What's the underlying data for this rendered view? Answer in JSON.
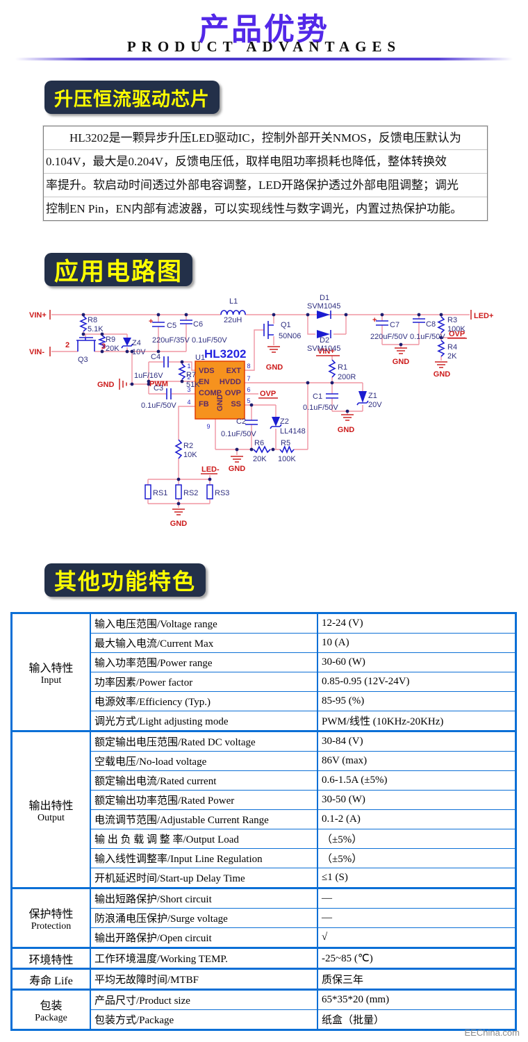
{
  "header": {
    "title": "产品优势",
    "subtitle": "PRODUCT  ADVANTAGES"
  },
  "badges": {
    "chip": "升压恒流驱动芯片",
    "circuit": "应用电路图",
    "features": "其他功能特色"
  },
  "intro": {
    "lines": [
      "　　HL3202是一颗异步升压LED驱动IC，控制外部开关NMOS，反馈电压默认为",
      "0.104V，最大是0.204V，反馈电压低，取样电阻功率损耗也降低，整体转换效",
      "率提升。软启动时间透过外部电容调整，LED开路保护透过外部电阻调整；调光",
      "控制EN Pin，EN内部有滤波器，可以实现线性与数字调光，内置过热保护功能。"
    ]
  },
  "circuit": {
    "ic": {
      "ref": "U1",
      "name": "HL3202",
      "left_pins": [
        [
          "1",
          "VDS"
        ],
        [
          "2",
          "EN"
        ],
        [
          "3",
          "COMP"
        ],
        [
          "4",
          "FB"
        ]
      ],
      "right_pins": [
        [
          "8",
          "EXT"
        ],
        [
          "7",
          "HVDD"
        ],
        [
          "6",
          "OVP"
        ],
        [
          "5",
          "SS"
        ]
      ],
      "bottom_pin": [
        "9",
        "GND"
      ]
    },
    "labels": {
      "net": [
        [
          "VIN+",
          42,
          457
        ],
        [
          "VIN-",
          42,
          510
        ],
        [
          "GND",
          140,
          557
        ],
        [
          "PWM",
          215,
          556
        ],
        [
          "OVP",
          374,
          570
        ],
        [
          "GND",
          395,
          532,
          "m"
        ],
        [
          "VIN+",
          457,
          509
        ],
        [
          "GND",
          577,
          524,
          "m"
        ],
        [
          "OVP",
          646,
          484
        ],
        [
          "GND",
          636,
          542,
          "m"
        ],
        [
          "GND",
          498,
          622,
          "m"
        ],
        [
          "GND",
          341,
          678,
          "m"
        ],
        [
          "GND",
          257,
          757,
          "m"
        ],
        [
          "LED+",
          682,
          458
        ],
        [
          "LED-",
          290,
          679
        ],
        [
          "2",
          94,
          500
        ],
        [
          "3",
          146,
          502
        ],
        [
          "+",
          214,
          466
        ],
        [
          "+",
          536,
          464
        ]
      ],
      "comp": [
        [
          "R8",
          126,
          464
        ],
        [
          "5.1K",
          126,
          477
        ],
        [
          "R9",
          152,
          492
        ],
        [
          "20K",
          152,
          505
        ],
        [
          "Z4",
          190,
          497
        ],
        [
          "10V",
          190,
          510
        ],
        [
          "Q3",
          112,
          521
        ],
        [
          "C5",
          240,
          472
        ],
        [
          "220uF/35V",
          219,
          493
        ],
        [
          "C6",
          278,
          470
        ],
        [
          "0.1uF/50V",
          276,
          493
        ],
        [
          "L1",
          330,
          437
        ],
        [
          "22uH",
          322,
          464
        ],
        [
          "C4",
          217,
          517
        ],
        [
          "1uF/16V",
          193,
          544
        ],
        [
          "R7",
          268,
          543
        ],
        [
          "51K",
          268,
          557
        ],
        [
          "C3",
          221,
          562
        ],
        [
          "0.1uF/50V",
          203,
          587
        ],
        [
          "Q1",
          404,
          471
        ],
        [
          "50N06",
          401,
          487
        ],
        [
          "D1",
          460,
          432
        ],
        [
          "SVM1045",
          442,
          444
        ],
        [
          "D2",
          460,
          493
        ],
        [
          "SVM1045",
          442,
          505
        ],
        [
          "C7",
          561,
          471
        ],
        [
          "220uF/50V",
          533,
          488
        ],
        [
          "C8",
          613,
          470
        ],
        [
          "0.1uF/50V",
          590,
          488
        ],
        [
          "R3",
          644,
          464
        ],
        [
          "100K",
          644,
          477
        ],
        [
          "R4",
          644,
          503
        ],
        [
          "2K",
          644,
          516
        ],
        [
          "R1",
          486,
          532
        ],
        [
          "200R",
          486,
          546
        ],
        [
          "C1",
          450,
          574
        ],
        [
          "0.1uF/50V",
          436,
          590
        ],
        [
          "Z1",
          530,
          573
        ],
        [
          "20V",
          530,
          586
        ],
        [
          "Z2",
          403,
          610
        ],
        [
          "LL4148",
          403,
          624
        ],
        [
          "C2",
          340,
          610
        ],
        [
          "0.1uF/50V",
          318,
          628
        ],
        [
          "R6",
          366,
          641
        ],
        [
          "20K",
          364,
          664
        ],
        [
          "R5",
          404,
          641
        ],
        [
          "100K",
          400,
          664
        ],
        [
          "R2",
          264,
          645
        ],
        [
          "10K",
          264,
          658
        ],
        [
          "RS1",
          220,
          713
        ],
        [
          "RS2",
          264,
          713
        ],
        [
          "RS3",
          309,
          713
        ],
        [
          "U1",
          281,
          518
        ]
      ],
      "pinnums": [
        [
          "1",
          272,
          530
        ],
        [
          "2",
          272,
          546
        ],
        [
          "3",
          272,
          564
        ],
        [
          "4",
          272,
          582
        ],
        [
          "8",
          358,
          530
        ],
        [
          "7",
          358,
          548
        ],
        [
          "6",
          358,
          564
        ],
        [
          "5",
          358,
          580
        ],
        [
          "9",
          300,
          617
        ]
      ]
    }
  },
  "table": {
    "sections": [
      {
        "category": [
          "输入特性",
          "Input"
        ],
        "rows": [
          [
            "输入电压范围/Voltage range",
            "12-24 (V)"
          ],
          [
            "最大输入电流/Current Max",
            "10 (A)"
          ],
          [
            "输入功率范围/Power range",
            "30-60 (W)"
          ],
          [
            "功率因素/Power factor",
            "0.85-0.95 (12V-24V)"
          ],
          [
            "电源效率/Efficiency (Typ.)",
            "85-95 (%)"
          ],
          [
            "调光方式/Light adjusting mode",
            "PWM/线性 (10KHz-20KHz)"
          ]
        ]
      },
      {
        "category": [
          "输出特性",
          "Output"
        ],
        "rows": [
          [
            "额定输出电压范围/Rated DC voltage",
            "30-84 (V)"
          ],
          [
            "空载电压/No-load voltage",
            "86V (max)"
          ],
          [
            "额定输出电流/Rated current",
            "0.6-1.5A (±5%)"
          ],
          [
            "额定输出功率范围/Rated Power",
            "30-50 (W)"
          ],
          [
            "电流调节范围/Adjustable Current Range",
            "0.1-2 (A)"
          ],
          [
            "输 出 负 载 调 整 率/Output Load",
            "（±5%）"
          ],
          [
            "输入线性调整率/Input Line Regulation",
            "（±5%）"
          ],
          [
            "开机延迟时间/Start-up Delay Time",
            "≤1 (S)"
          ]
        ]
      },
      {
        "category": [
          "保护特性",
          "Protection"
        ],
        "rows": [
          [
            "输出短路保护/Short circuit",
            "—"
          ],
          [
            "防浪涌电压保护/Surge voltage",
            "—"
          ],
          [
            "输出开路保护/Open circuit",
            "√"
          ]
        ]
      },
      {
        "category": [
          "环境特性"
        ],
        "rows": [
          [
            "工作环境温度/Working TEMP.",
            "-25~85 (℃)"
          ]
        ]
      },
      {
        "category": [
          "寿命 Life"
        ],
        "rows": [
          [
            "平均无故障时间/MTBF",
            "质保三年"
          ]
        ]
      },
      {
        "category": [
          "包装",
          "Package"
        ],
        "rows": [
          [
            "产品尺寸/Product size",
            "65*35*20 (mm)"
          ],
          [
            "包装方式/Package",
            "纸盒（批量）"
          ]
        ]
      }
    ]
  },
  "footer": {
    "watermark": "EEChina.com"
  },
  "colors": {
    "title": "#5228e8",
    "badge_bg": "#233049",
    "badge_text": "#ffff00",
    "table_border": "#0b6fd6",
    "wire": "#f095a2",
    "component": "#1c1cd0",
    "net_label": "#cc1a1a",
    "ic_fill": "#f6921e"
  }
}
